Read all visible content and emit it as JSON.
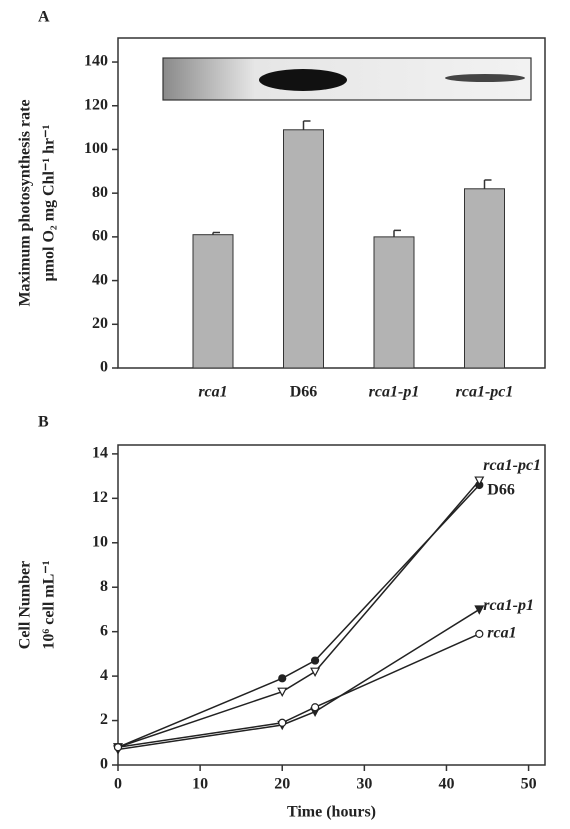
{
  "chart_data": [
    {
      "type": "bar",
      "label": "A",
      "ylabel": [
        "Maximum photosynthesis rate",
        "μmol O₂ mg Chl⁻¹ hr⁻¹"
      ],
      "categories": [
        "rca1",
        "D66",
        "rca1-p1",
        "rca1-pc1"
      ],
      "values": [
        61,
        109,
        60,
        82
      ],
      "errors": [
        1,
        4,
        3,
        4
      ],
      "color": "#b3b3b3",
      "ylim": [
        0,
        151
      ],
      "yticks": [
        0,
        20,
        40,
        60,
        80,
        100,
        120,
        140
      ]
    },
    {
      "type": "line",
      "label": "B",
      "ylabel": [
        "Cell Number",
        "10⁶ cell mL⁻¹"
      ],
      "xlabel": "Time (hours)",
      "x": [
        0,
        20,
        24,
        44
      ],
      "series": [
        {
          "name": "D66",
          "color": "#222",
          "marker": "circle",
          "filled": true,
          "values": [
            0.8,
            3.9,
            4.7,
            12.6
          ]
        },
        {
          "name": "rca1-pc1",
          "color": "#222",
          "marker": "triangle",
          "filled": false,
          "values": [
            0.8,
            3.3,
            4.2,
            12.8
          ]
        },
        {
          "name": "rca1-p1",
          "color": "#222",
          "marker": "triangle",
          "filled": true,
          "values": [
            0.7,
            1.8,
            2.4,
            7.0
          ]
        },
        {
          "name": "rca1",
          "color": "#222",
          "marker": "circle",
          "filled": false,
          "values": [
            0.8,
            1.9,
            2.6,
            5.9
          ]
        }
      ],
      "xlim": [
        0,
        52
      ],
      "xticks": [
        0,
        10,
        20,
        30,
        40,
        50
      ],
      "ylim": [
        0,
        14.4
      ],
      "yticks": [
        0,
        2,
        4,
        6,
        8,
        10,
        12,
        14
      ]
    }
  ]
}
